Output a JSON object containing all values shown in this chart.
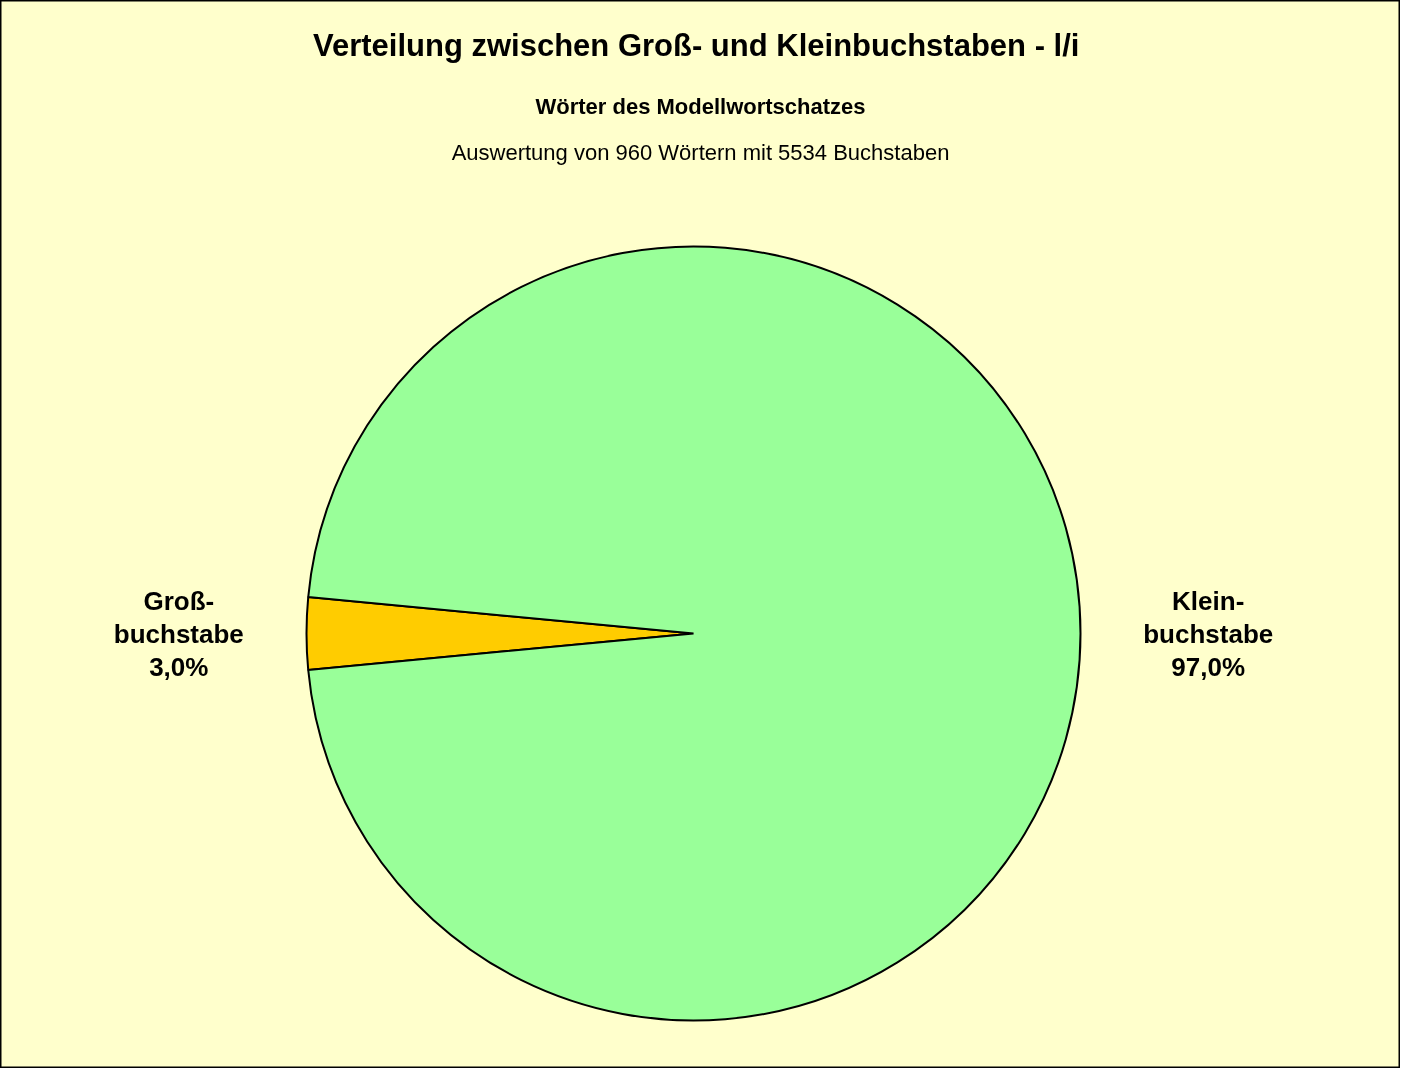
{
  "chart_data": {
    "type": "pie",
    "title": "Verteilung zwischen Groß- und  Kleinbuchstaben - l/i",
    "subtitle": "Wörter des Modellwortschatzes",
    "annotations": [
      "Auswertung von 960 Wörtern mit 5534 Buchstaben"
    ],
    "categories": [
      "Groß-\nbuchstabe",
      "Klein-\nbuchstabe"
    ],
    "values": [
      3.0,
      97.0
    ],
    "value_labels": [
      "3,0%",
      "97,0%"
    ],
    "colors": [
      "#ffcc00",
      "#99ff99"
    ]
  }
}
